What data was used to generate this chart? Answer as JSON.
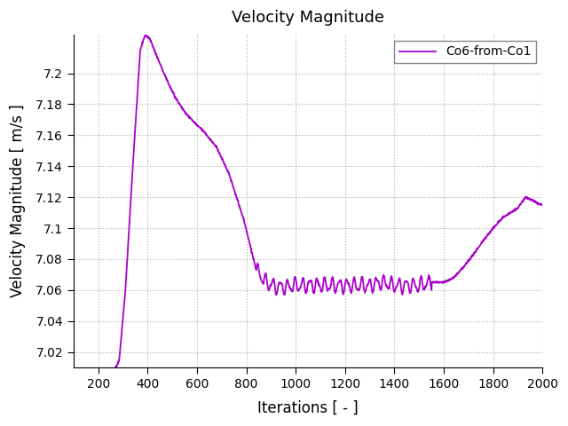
{
  "title": "Velocity Magnitude",
  "xlabel": "Iterations [ - ]",
  "ylabel": "Velocity Magnitude [ m/s ]",
  "legend_label": "Co6-from-Co1",
  "line_color": "#aa00cc",
  "xlim": [
    100,
    2000
  ],
  "ylim": [
    7.01,
    7.225
  ],
  "xticks": [
    200,
    400,
    600,
    800,
    1000,
    1200,
    1400,
    1600,
    1800,
    2000
  ],
  "yticks": [
    7.02,
    7.04,
    7.06,
    7.08,
    7.1,
    7.12,
    7.14,
    7.16,
    7.18,
    7.2
  ],
  "background_color": "#ffffff",
  "grid_color": "#aaaaaa",
  "figsize": [
    6.4,
    4.8
  ],
  "dpi": 100
}
